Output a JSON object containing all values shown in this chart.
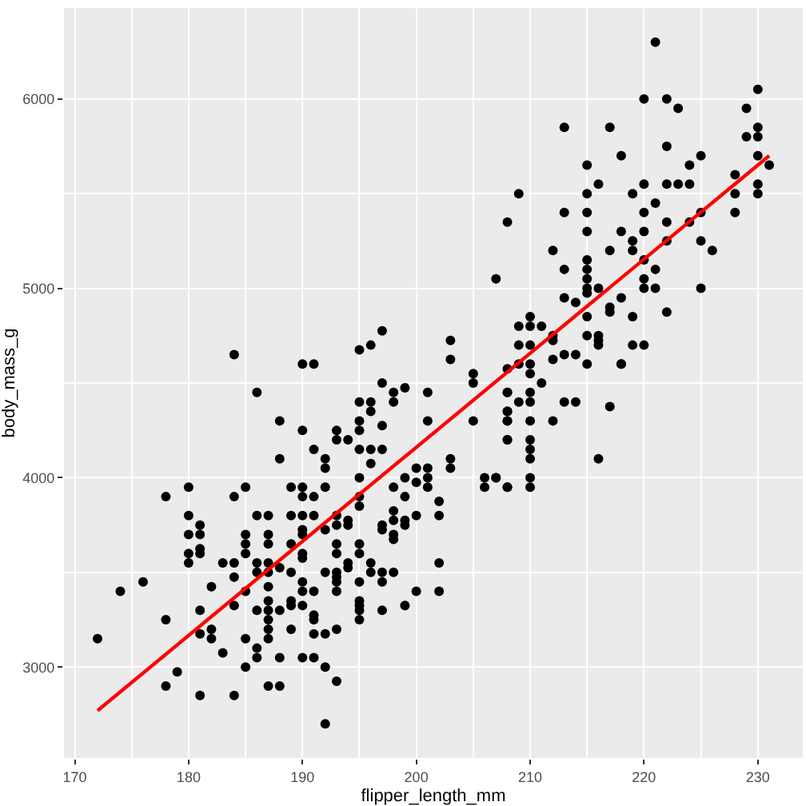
{
  "chart_data": {
    "type": "scatter",
    "xlabel": "flipper_length_mm",
    "ylabel": "body_mass_g",
    "xlim": [
      169.05,
      233.95
    ],
    "ylim": [
      2520,
      6480
    ],
    "xticks": [
      170,
      {
        "value": 175,
        "label": null
      },
      180,
      {
        "value": 185,
        "label": null
      },
      190,
      {
        "value": 195,
        "label": null
      },
      200,
      {
        "value": 205,
        "label": null
      },
      210,
      {
        "value": 215,
        "label": null
      },
      220,
      {
        "value": 225,
        "label": null
      },
      230
    ],
    "yticks": [
      3000,
      {
        "value": 3500,
        "label": null
      },
      4000,
      {
        "value": 4500,
        "label": null
      },
      5000,
      {
        "value": 5500,
        "label": null
      },
      6000
    ],
    "grid": true,
    "marker": "circle",
    "series": [
      {
        "color": "#000000",
        "x": [
          172,
          174,
          176,
          178,
          178,
          178,
          179,
          180,
          180,
          180,
          180,
          180,
          181,
          181,
          181,
          181,
          181,
          181,
          181,
          182,
          182,
          182,
          183,
          183,
          184,
          184,
          184,
          184,
          184,
          184,
          185,
          185,
          185,
          185,
          185,
          185,
          185,
          186,
          186,
          186,
          186,
          186,
          186,
          186,
          187,
          187,
          187,
          187,
          187,
          187,
          187,
          187,
          187,
          187,
          187,
          187,
          188,
          188,
          188,
          188,
          188,
          188,
          189,
          189,
          189,
          189,
          189,
          189,
          189,
          190,
          190,
          190,
          190,
          190,
          190,
          190,
          190,
          190,
          190,
          190,
          190,
          190,
          191,
          191,
          191,
          191,
          191,
          191,
          191,
          191,
          191,
          192,
          192,
          192,
          192,
          192,
          192,
          192,
          192,
          193,
          193,
          193,
          193,
          193,
          193,
          193,
          193,
          193,
          193,
          193,
          193,
          194,
          194,
          194,
          194,
          194,
          195,
          195,
          195,
          195,
          195,
          195,
          195,
          195,
          195,
          195,
          195,
          195,
          195,
          195,
          195,
          196,
          196,
          196,
          196,
          196,
          196,
          196,
          197,
          197,
          197,
          197,
          197,
          197,
          197,
          197,
          197,
          198,
          198,
          198,
          198,
          198,
          198,
          198,
          198,
          199,
          199,
          199,
          199,
          199,
          199,
          200,
          200,
          200,
          200,
          201,
          201,
          201,
          201,
          201,
          202,
          202,
          202,
          202,
          203,
          203,
          203,
          203,
          205,
          205,
          205,
          206,
          207,
          208,
          208,
          208,
          208,
          208,
          206,
          207,
          207,
          208,
          208,
          208,
          208,
          208,
          208,
          208,
          209,
          209,
          209,
          209,
          209,
          210,
          210,
          210,
          210,
          210,
          210,
          210,
          210,
          210,
          210,
          210,
          210,
          210,
          211,
          211,
          212,
          212,
          212,
          212,
          212,
          213,
          213,
          213,
          213,
          213,
          213,
          214,
          214,
          214,
          215,
          215,
          215,
          215,
          215,
          215,
          215,
          215,
          215,
          215,
          215,
          215,
          216,
          216,
          216,
          216,
          216,
          216,
          217,
          217,
          217,
          217,
          217,
          218,
          218,
          218,
          218,
          218,
          219,
          219,
          219,
          219,
          219,
          220,
          220,
          220,
          220,
          220,
          220,
          220,
          220,
          221,
          221,
          221,
          221,
          222,
          222,
          222,
          222,
          222,
          222,
          223,
          223,
          224,
          224,
          224,
          225,
          225,
          225,
          225,
          226,
          228,
          228,
          228,
          229,
          229,
          230,
          230,
          230,
          230,
          230,
          230,
          231
        ],
        "values": [
          3150,
          3400,
          3450,
          3900,
          3250,
          2900,
          2975,
          3950,
          3800,
          3700,
          3600,
          3550,
          3750,
          3700,
          3625,
          3600,
          3300,
          3175,
          2850,
          3425,
          3200,
          3150,
          3550,
          3075,
          4650,
          3900,
          3550,
          3475,
          3325,
          2850,
          3950,
          3700,
          3650,
          3600,
          3400,
          3150,
          3000,
          4450,
          3800,
          3550,
          3500,
          3300,
          3100,
          3050,
          3800,
          3700,
          3650,
          3550,
          3500,
          3425,
          3350,
          3300,
          3250,
          3200,
          3150,
          2900,
          4300,
          4100,
          3525,
          3300,
          3050,
          2900,
          3950,
          3800,
          3650,
          3500,
          3350,
          3325,
          3200,
          4600,
          4250,
          3950,
          3900,
          3800,
          3725,
          3700,
          3600,
          3575,
          3450,
          3400,
          3325,
          3050,
          4600,
          4150,
          3900,
          3800,
          3400,
          3275,
          3250,
          3175,
          3050,
          4100,
          4050,
          3950,
          3725,
          3500,
          3175,
          3000,
          2700,
          4250,
          4200,
          3800,
          3750,
          3650,
          3600,
          3500,
          3475,
          3450,
          3400,
          3200,
          2925,
          4200,
          3775,
          3750,
          3550,
          3525,
          4675,
          4400,
          4300,
          4250,
          4150,
          4000,
          3900,
          3850,
          3650,
          3600,
          3450,
          3350,
          3325,
          3300,
          3250,
          4700,
          4400,
          4350,
          4150,
          4075,
          3550,
          3500,
          4775,
          4500,
          4275,
          4150,
          3750,
          3725,
          3500,
          3450,
          3300,
          4450,
          4400,
          3950,
          3825,
          3775,
          3700,
          3675,
          3500,
          4475,
          4000,
          3900,
          3775,
          3750,
          3325,
          3975,
          3800,
          3400,
          4050,
          4450,
          4300,
          4050,
          4000,
          3950,
          3875,
          3800,
          3550,
          3400,
          4725,
          4625,
          4100,
          4050,
          4550,
          4500,
          4300,
          3950,
          4000,
          4300,
          4350,
          4450,
          4200,
          3950,
          4000,
          5050,
          4000,
          5350,
          4575,
          4450,
          4350,
          4300,
          4200,
          3950,
          5500,
          4800,
          4700,
          4600,
          4400,
          4850,
          4800,
          4700,
          4600,
          4550,
          4450,
          4400,
          4300,
          4200,
          4150,
          4100,
          4000,
          3950,
          4800,
          4500,
          5200,
          4750,
          4725,
          4625,
          4300,
          5850,
          5400,
          5100,
          4950,
          4650,
          4400,
          4925,
          4650,
          4400,
          5650,
          5500,
          5400,
          5300,
          5150,
          5100,
          5050,
          5000,
          4975,
          4850,
          4750,
          4600,
          5550,
          5000,
          4750,
          4725,
          4700,
          4100,
          5850,
          5200,
          4900,
          4875,
          4375,
          5700,
          5300,
          4950,
          4600,
          4600,
          5500,
          5250,
          5200,
          4850,
          4700,
          6000,
          5550,
          5400,
          5300,
          5150,
          5050,
          5000,
          4700,
          6300,
          5450,
          5100,
          5000,
          6000,
          5750,
          5550,
          5350,
          5250,
          4875,
          5950,
          5550,
          5650,
          5550,
          5350,
          5700,
          5400,
          5250,
          5000,
          5200,
          5600,
          5500,
          5400,
          5950,
          5800,
          6050,
          5850,
          5800,
          5700,
          5550,
          5500,
          5650
        ]
      },
      {
        "type": "line",
        "color": "#ff0000",
        "marker": "none",
        "line_style": "solid",
        "x": [
          172,
          231
        ],
        "values": [
          2770,
          5700
        ]
      }
    ]
  }
}
